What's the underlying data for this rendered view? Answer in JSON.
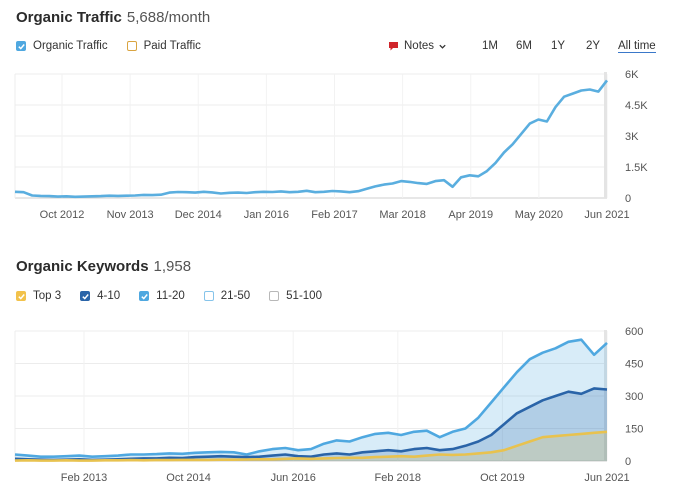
{
  "organic_traffic": {
    "title": "Organic Traffic",
    "value": "5,688/month",
    "legend": [
      {
        "label": "Organic Traffic",
        "checked": true,
        "color": "#4fa8e0"
      },
      {
        "label": "Paid Traffic",
        "checked": false,
        "color": "#d9a441"
      }
    ],
    "notes_label": "Notes",
    "ranges": [
      "1M",
      "6M",
      "1Y",
      "2Y",
      "All time"
    ],
    "active_range": "All time",
    "chart_data": {
      "type": "line",
      "series": [
        {
          "name": "Organic Traffic",
          "color": "#5aaedf",
          "values": [
            300,
            280,
            120,
            100,
            90,
            70,
            80,
            60,
            70,
            80,
            90,
            110,
            100,
            110,
            120,
            150,
            140,
            160,
            260,
            290,
            280,
            260,
            300,
            270,
            220,
            250,
            260,
            240,
            280,
            300,
            290,
            320,
            280,
            300,
            350,
            280,
            300,
            340,
            320,
            280,
            330,
            450,
            560,
            650,
            700,
            820,
            780,
            720,
            680,
            820,
            860,
            540,
            1000,
            1100,
            1050,
            1300,
            1700,
            2200,
            2600,
            3100,
            3600,
            3800,
            3700,
            4400,
            4900,
            5050,
            5200,
            5250,
            5150,
            5688
          ]
        }
      ],
      "x_ticks": [
        "Oct 2012",
        "Nov 2013",
        "Dec 2014",
        "Jan 2016",
        "Feb 2017",
        "Mar 2018",
        "Apr 2019",
        "May 2020",
        "Jun 2021"
      ],
      "y_ticks": [
        "6K",
        "4.5K",
        "3K",
        "1.5K",
        "0"
      ],
      "ylim": [
        0,
        6000
      ]
    }
  },
  "organic_keywords": {
    "title": "Organic Keywords",
    "value": "1,958",
    "legend": [
      {
        "label": "Top 3",
        "checked": true,
        "color": "#f2c24b"
      },
      {
        "label": "4-10",
        "checked": true,
        "color": "#2a64a8"
      },
      {
        "label": "11-20",
        "checked": true,
        "color": "#4fa8e0"
      },
      {
        "label": "21-50",
        "checked": false,
        "color": "#86c4ea"
      },
      {
        "label": "51-100",
        "checked": false,
        "color": "#b8b8b8"
      }
    ],
    "chart_data": {
      "type": "area",
      "series": [
        {
          "name": "Top 3",
          "color": "#e8c24f",
          "values": [
            2,
            3,
            2,
            2,
            3,
            2,
            2,
            3,
            3,
            4,
            3,
            4,
            4,
            5,
            5,
            5,
            6,
            6,
            7,
            8,
            8,
            10,
            12,
            10,
            12,
            14,
            15,
            15,
            18,
            20,
            22,
            20,
            25,
            30,
            28,
            30,
            35,
            40,
            50,
            70,
            90,
            110,
            115,
            120,
            125,
            130,
            135
          ]
        },
        {
          "name": "4-10",
          "color": "#2a64a8",
          "values": [
            10,
            8,
            6,
            5,
            6,
            8,
            5,
            6,
            8,
            10,
            12,
            12,
            15,
            14,
            18,
            20,
            22,
            20,
            18,
            20,
            25,
            30,
            22,
            20,
            30,
            35,
            30,
            40,
            45,
            50,
            45,
            55,
            60,
            50,
            55,
            70,
            90,
            120,
            170,
            220,
            250,
            280,
            300,
            320,
            310,
            335,
            330
          ]
        },
        {
          "name": "11-20",
          "color": "#4fa8e0",
          "values": [
            30,
            25,
            20,
            20,
            22,
            25,
            20,
            22,
            25,
            30,
            30,
            32,
            35,
            33,
            38,
            40,
            42,
            40,
            30,
            45,
            55,
            60,
            50,
            55,
            80,
            95,
            90,
            110,
            125,
            130,
            120,
            135,
            140,
            110,
            135,
            150,
            200,
            270,
            340,
            410,
            470,
            500,
            520,
            550,
            560,
            490,
            545
          ]
        }
      ],
      "x_ticks": [
        "Feb 2013",
        "Oct 2014",
        "Jun 2016",
        "Feb 2018",
        "Oct 2019",
        "Jun 2021"
      ],
      "y_ticks": [
        "600",
        "450",
        "300",
        "150",
        "0"
      ],
      "ylim": [
        0,
        600
      ]
    }
  }
}
